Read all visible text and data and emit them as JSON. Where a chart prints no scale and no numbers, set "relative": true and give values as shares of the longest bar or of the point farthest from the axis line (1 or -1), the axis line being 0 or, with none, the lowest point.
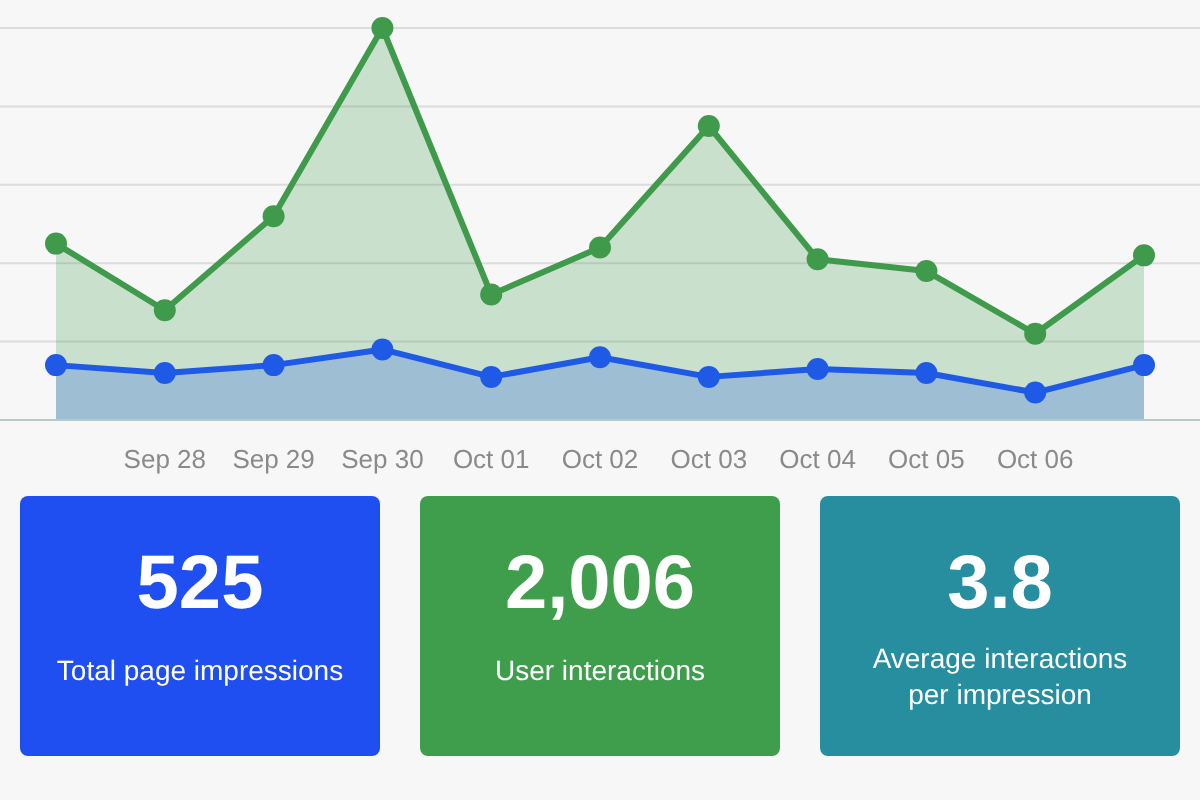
{
  "chart_data": [
    {
      "type": "area",
      "relative": true,
      "grid": true,
      "marker": "circle",
      "categories": [
        null,
        "Sep 28",
        "Sep 29",
        "Sep 30",
        "Oct 01",
        "Oct 02",
        "Oct 03",
        "Oct 04",
        "Oct 05",
        "Oct 06",
        null
      ],
      "series": [
        {
          "color": "#3f9a4b",
          "values": [
            0.45,
            0.28,
            0.52,
            1,
            0.32,
            0.44,
            0.75,
            0.41,
            0.38,
            0.22,
            0.42
          ]
        },
        {
          "color": "#1f5ae6",
          "values": [
            0.14,
            0.12,
            0.14,
            0.18,
            0.11,
            0.16,
            0.11,
            0.13,
            0.12,
            0.07,
            0.14
          ]
        }
      ]
    },
    {
      "type": "other",
      "categories": [
        "Total page impressions",
        "User interactions",
        "Average interactions per impression"
      ],
      "value_labels": [
        "525",
        "2,006",
        "3.8"
      ],
      "colors": [
        "#1f4ff0",
        "#3e9e4c",
        "#268e9e"
      ]
    }
  ]
}
